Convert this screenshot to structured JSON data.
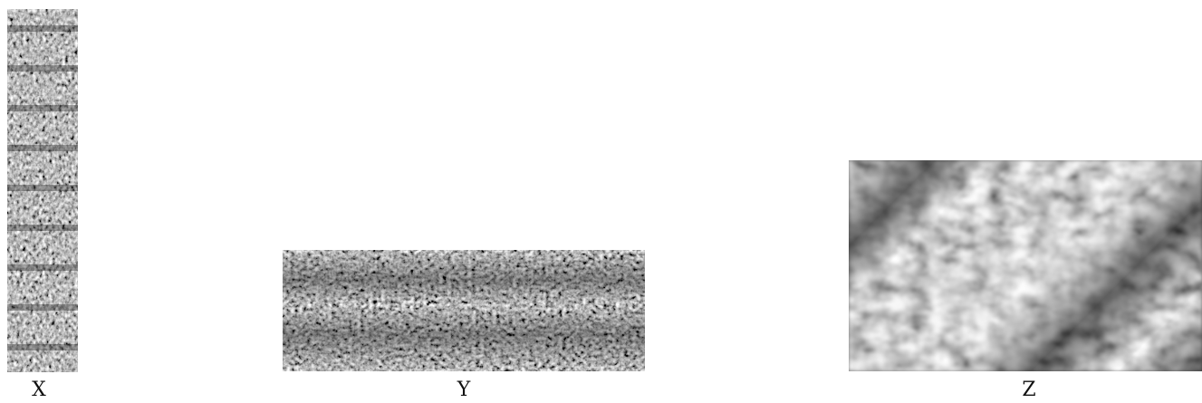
{
  "panels": [
    {
      "key": "x",
      "label": "X"
    },
    {
      "key": "y",
      "label": "Y"
    },
    {
      "key": "z",
      "label": "Z"
    }
  ],
  "colors": {
    "background": "#ffffff",
    "texture_dark": "#1a1a1a",
    "texture_light": "#f0f0f0",
    "caption": "#111111"
  }
}
